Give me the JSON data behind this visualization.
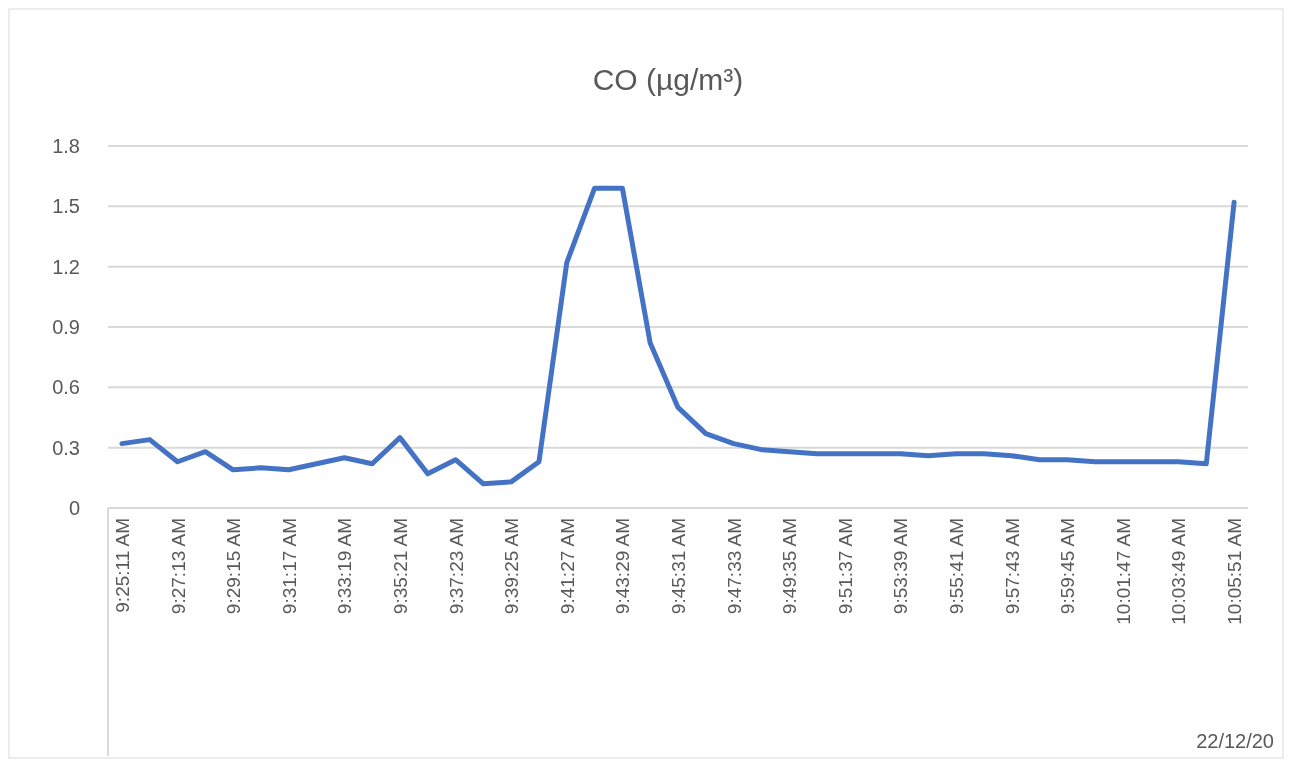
{
  "chart_data": {
    "type": "line",
    "title": "CO (µg/m³)",
    "categories": [
      "9:25:11 AM",
      null,
      "9:27:13 AM",
      null,
      "9:29:15 AM",
      null,
      "9:31:17 AM",
      null,
      "9:33:19 AM",
      null,
      "9:35:21 AM",
      null,
      "9:37:23 AM",
      null,
      "9:39:25 AM",
      null,
      "9:41:27 AM",
      null,
      "9:43:29 AM",
      null,
      "9:45:31 AM",
      null,
      "9:47:33 AM",
      null,
      "9:49:35 AM",
      null,
      "9:51:37 AM",
      null,
      "9:53:39 AM",
      null,
      "9:55:41 AM",
      null,
      "9:57:43 AM",
      null,
      "9:59:45 AM",
      null,
      "10:01:47 AM",
      null,
      "10:03:49 AM",
      null,
      "10:05:51 AM"
    ],
    "series": [
      {
        "color": "#4472c4",
        "values": [
          0.32,
          0.34,
          0.23,
          0.28,
          0.19,
          0.2,
          0.19,
          0.22,
          0.25,
          0.22,
          0.35,
          0.17,
          0.24,
          0.12,
          0.13,
          0.23,
          1.22,
          1.59,
          1.59,
          0.82,
          0.5,
          0.37,
          0.32,
          0.29,
          0.28,
          0.27,
          0.27,
          0.27,
          0.27,
          0.26,
          0.27,
          0.27,
          0.26,
          0.24,
          0.24,
          0.23,
          0.23,
          0.23,
          0.23,
          0.22,
          1.52
        ]
      }
    ],
    "ylim": [
      0,
      1.8
    ],
    "yticks": [
      0,
      0.3,
      0.6,
      0.9,
      1.2,
      1.5,
      1.8
    ],
    "grid": "y",
    "marker": "none",
    "line_style": "solid",
    "annotations": [
      "22/12/20"
    ]
  }
}
